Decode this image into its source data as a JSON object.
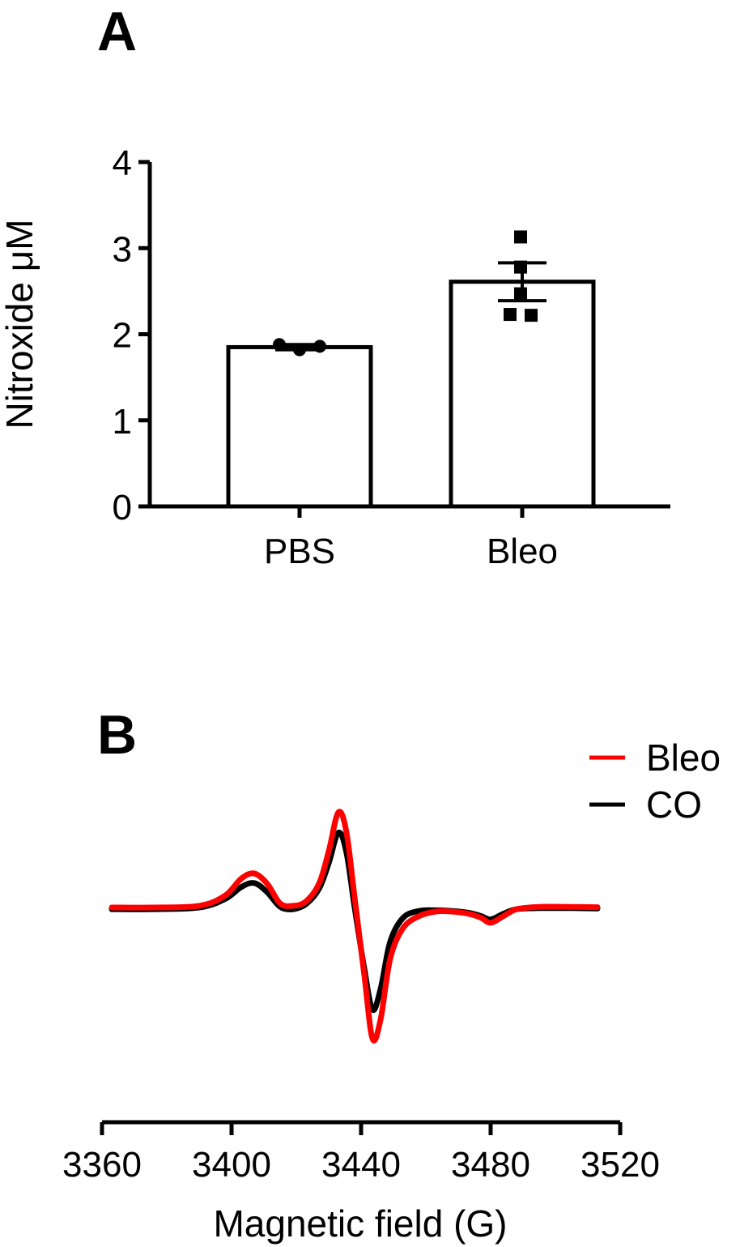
{
  "chart_data": [
    {
      "panel": "A",
      "type": "bar",
      "ylabel": "Nitroxide μM",
      "xlabel": "",
      "ylim": [
        0,
        4
      ],
      "yticks": [
        "0",
        "1",
        "2",
        "3",
        "4"
      ],
      "categories": [
        "PBS",
        "Bleo"
      ],
      "values": [
        1.85,
        2.61
      ],
      "sem": [
        0.03,
        0.22
      ],
      "points": [
        [
          1.88,
          1.82,
          1.86
        ],
        [
          3.13,
          2.78,
          2.47,
          2.23,
          2.22
        ]
      ],
      "marker_shapes": [
        "circle",
        "square"
      ],
      "grid": false
    },
    {
      "panel": "B",
      "type": "line",
      "xlabel": "Magnetic field (G)",
      "ylabel": "",
      "xlim": [
        3360,
        3520
      ],
      "xticks": [
        "3360",
        "3400",
        "3440",
        "3480",
        "3520"
      ],
      "legend_position": "top-right",
      "series": [
        {
          "name": "Bleo",
          "color": "#ff0000",
          "x": [
            3363,
            3375,
            3390,
            3398,
            3403,
            3407,
            3411,
            3415,
            3419,
            3423,
            3427,
            3430,
            3433,
            3435.5,
            3438,
            3441,
            3443.5,
            3446,
            3449,
            3453,
            3458,
            3463,
            3468,
            3473,
            3477,
            3480,
            3484,
            3488,
            3495,
            3505,
            3513
          ],
          "y": [
            0,
            0,
            0.05,
            0.35,
            0.85,
            1.0,
            0.7,
            0.12,
            0.05,
            0.18,
            0.7,
            1.65,
            2.8,
            2.2,
            0.3,
            -2.0,
            -3.85,
            -3.3,
            -1.5,
            -0.6,
            -0.25,
            -0.12,
            -0.12,
            -0.18,
            -0.3,
            -0.45,
            -0.25,
            -0.05,
            0.02,
            0.02,
            0.01
          ]
        },
        {
          "name": "CO",
          "color": "#000000",
          "x": [
            3363,
            3375,
            3390,
            3398,
            3403,
            3407,
            3411,
            3415,
            3419,
            3423,
            3427,
            3430,
            3433,
            3435.5,
            3438,
            3441,
            3443.5,
            3446,
            3449,
            3453,
            3458,
            3463,
            3468,
            3473,
            3477,
            3480,
            3484,
            3488,
            3495,
            3505,
            3513
          ],
          "y": [
            -0.05,
            -0.05,
            0.0,
            0.25,
            0.6,
            0.72,
            0.45,
            0.02,
            -0.05,
            0.1,
            0.55,
            1.3,
            2.2,
            1.6,
            0.0,
            -1.8,
            -3.0,
            -2.4,
            -1.0,
            -0.3,
            -0.1,
            -0.08,
            -0.1,
            -0.15,
            -0.25,
            -0.35,
            -0.18,
            -0.05,
            -0.02,
            -0.02,
            -0.03
          ]
        }
      ],
      "grid": false
    }
  ],
  "labels": {
    "panel_a": "A",
    "panel_b": "B"
  }
}
